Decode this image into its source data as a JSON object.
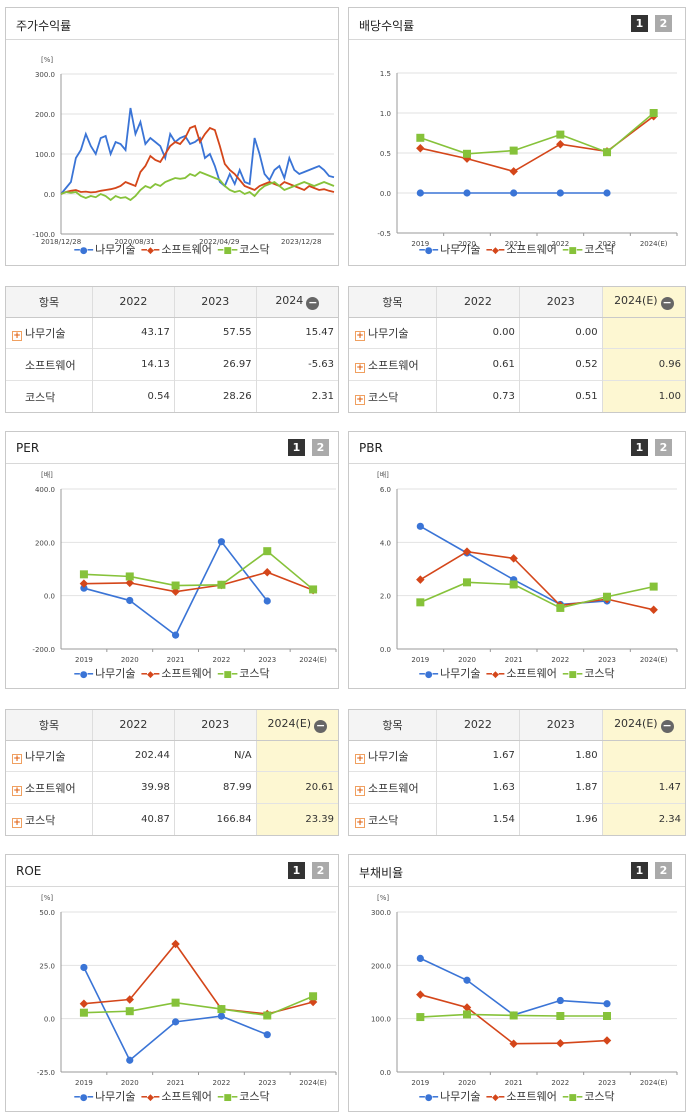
{
  "colors": {
    "s1": "#3a74d6",
    "s2": "#d4461a",
    "s3": "#86c23a"
  },
  "legend": [
    "나무기술",
    "소프트웨어",
    "코스닥"
  ],
  "panels": {
    "stock": {
      "title": "주가수익률",
      "unit": "[%]"
    },
    "div": {
      "title": "배당수익률",
      "btn1": "1",
      "btn2": "2"
    },
    "per": {
      "title": "PER",
      "unit": "[배]",
      "btn1": "1",
      "btn2": "2"
    },
    "pbr": {
      "title": "PBR",
      "unit": "[배]",
      "btn1": "1",
      "btn2": "2"
    },
    "roe": {
      "title": "ROE",
      "unit": "[%]",
      "btn1": "1",
      "btn2": "2"
    },
    "debt": {
      "title": "부채비율",
      "unit": "[%]",
      "btn1": "1",
      "btn2": "2"
    }
  },
  "tables": {
    "stock": {
      "head": [
        "항목",
        "2022",
        "2023",
        "2024"
      ],
      "rows": [
        {
          "label": "나무기술",
          "plus": true,
          "v": [
            "43.17",
            "57.55",
            "15.47"
          ]
        },
        {
          "label": "소프트웨어",
          "plus": false,
          "v": [
            "14.13",
            "26.97",
            "-5.63"
          ]
        },
        {
          "label": "코스닥",
          "plus": false,
          "v": [
            "0.54",
            "28.26",
            "2.31"
          ]
        }
      ]
    },
    "div": {
      "head": [
        "항목",
        "2022",
        "2023",
        "2024(E)"
      ],
      "rows": [
        {
          "label": "나무기술",
          "plus": true,
          "v": [
            "0.00",
            "0.00",
            ""
          ]
        },
        {
          "label": "소프트웨어",
          "plus": true,
          "v": [
            "0.61",
            "0.52",
            "0.96"
          ]
        },
        {
          "label": "코스닥",
          "plus": true,
          "v": [
            "0.73",
            "0.51",
            "1.00"
          ]
        }
      ]
    },
    "per": {
      "head": [
        "항목",
        "2022",
        "2023",
        "2024(E)"
      ],
      "rows": [
        {
          "label": "나무기술",
          "plus": true,
          "v": [
            "202.44",
            "N/A",
            ""
          ]
        },
        {
          "label": "소프트웨어",
          "plus": true,
          "v": [
            "39.98",
            "87.99",
            "20.61"
          ]
        },
        {
          "label": "코스닥",
          "plus": true,
          "v": [
            "40.87",
            "166.84",
            "23.39"
          ]
        }
      ]
    },
    "pbr": {
      "head": [
        "항목",
        "2022",
        "2023",
        "2024(E)"
      ],
      "rows": [
        {
          "label": "나무기술",
          "plus": true,
          "v": [
            "1.67",
            "1.80",
            ""
          ]
        },
        {
          "label": "소프트웨어",
          "plus": true,
          "v": [
            "1.63",
            "1.87",
            "1.47"
          ]
        },
        {
          "label": "코스닥",
          "plus": true,
          "v": [
            "1.54",
            "1.96",
            "2.34"
          ]
        }
      ]
    }
  },
  "chart_data": [
    {
      "id": "stock",
      "type": "line",
      "title": "주가수익률",
      "ylabel": "[%]",
      "ylim": [
        -100,
        300
      ],
      "yticks": [
        "300.0",
        "200.0",
        "100.0",
        "0.0",
        "-100.0"
      ],
      "xticks": [
        "2018/12/28",
        "2020/08/31",
        "2022/04/29",
        "2023/12/28"
      ],
      "series": [
        {
          "name": "나무기술",
          "values": [
            0,
            15,
            30,
            90,
            110,
            150,
            120,
            100,
            140,
            145,
            100,
            130,
            125,
            110,
            215,
            150,
            180,
            125,
            140,
            130,
            120,
            90,
            150,
            130,
            140,
            145,
            125,
            130,
            140,
            90,
            100,
            70,
            30,
            20,
            50,
            25,
            60,
            30,
            25,
            140,
            100,
            50,
            35,
            60,
            70,
            40,
            90,
            60,
            50,
            55,
            60,
            65,
            70,
            60,
            45,
            42
          ]
        },
        {
          "name": "소프트웨어",
          "values": [
            0,
            5,
            8,
            10,
            5,
            6,
            4,
            5,
            8,
            10,
            12,
            15,
            20,
            30,
            25,
            20,
            55,
            70,
            95,
            85,
            80,
            100,
            120,
            130,
            125,
            140,
            165,
            170,
            130,
            150,
            165,
            160,
            120,
            75,
            60,
            50,
            35,
            20,
            15,
            10,
            20,
            25,
            30,
            25,
            20,
            30,
            25,
            20,
            15,
            10,
            20,
            15,
            10,
            12,
            8,
            5
          ]
        },
        {
          "name": "코스닥",
          "values": [
            0,
            5,
            3,
            5,
            -5,
            -10,
            -5,
            -8,
            0,
            -5,
            -15,
            -5,
            -10,
            -8,
            -15,
            -5,
            10,
            20,
            15,
            25,
            20,
            30,
            35,
            40,
            38,
            40,
            50,
            45,
            55,
            50,
            45,
            40,
            35,
            20,
            10,
            5,
            8,
            0,
            5,
            -5,
            10,
            20,
            25,
            30,
            20,
            10,
            15,
            20,
            25,
            30,
            25,
            20,
            25,
            30,
            25,
            20
          ]
        }
      ]
    },
    {
      "id": "div",
      "type": "line",
      "title": "배당수익률",
      "ylim": [
        -0.5,
        1.5
      ],
      "yticks": [
        "1.5",
        "1.0",
        "0.5",
        "0.0",
        "-0.5"
      ],
      "categories": [
        "2019",
        "2020",
        "2021",
        "2022",
        "2023",
        "2024(E)"
      ],
      "series": [
        {
          "name": "나무기술",
          "values": [
            0,
            0,
            0,
            0,
            0,
            null
          ]
        },
        {
          "name": "소프트웨어",
          "values": [
            0.56,
            0.43,
            0.27,
            0.61,
            0.52,
            0.96
          ]
        },
        {
          "name": "코스닥",
          "values": [
            0.69,
            0.49,
            0.53,
            0.73,
            0.51,
            1.0
          ]
        }
      ]
    },
    {
      "id": "per",
      "type": "line",
      "title": "PER",
      "ylabel": "[배]",
      "ylim": [
        -200,
        400
      ],
      "yticks": [
        "400.0",
        "200.0",
        "0.0",
        "-200.0"
      ],
      "categories": [
        "2019",
        "2020",
        "2021",
        "2022",
        "2023",
        "2024(E)"
      ],
      "series": [
        {
          "name": "나무기술",
          "values": [
            28,
            -18,
            -148,
            202.44,
            -20,
            null
          ]
        },
        {
          "name": "소프트웨어",
          "values": [
            45,
            48,
            15,
            39.98,
            87.99,
            20.61
          ]
        },
        {
          "name": "코스닥",
          "values": [
            80,
            72,
            38,
            40.87,
            166.84,
            23.39
          ]
        }
      ]
    },
    {
      "id": "pbr",
      "type": "line",
      "title": "PBR",
      "ylabel": "[배]",
      "ylim": [
        0,
        6
      ],
      "yticks": [
        "6.0",
        "4.0",
        "2.0",
        "0.0"
      ],
      "categories": [
        "2019",
        "2020",
        "2021",
        "2022",
        "2023",
        "2024(E)"
      ],
      "series": [
        {
          "name": "나무기술",
          "values": [
            4.6,
            3.6,
            2.6,
            1.67,
            1.8,
            null
          ]
        },
        {
          "name": "소프트웨어",
          "values": [
            2.6,
            3.65,
            3.4,
            1.63,
            1.87,
            1.47
          ]
        },
        {
          "name": "코스닥",
          "values": [
            1.75,
            2.5,
            2.42,
            1.54,
            1.96,
            2.34
          ]
        }
      ]
    },
    {
      "id": "roe",
      "type": "line",
      "title": "ROE",
      "ylabel": "[%]",
      "ylim": [
        -25,
        50
      ],
      "yticks": [
        "50.0",
        "25.0",
        "0.0",
        "-25.0"
      ],
      "categories": [
        "2019",
        "2020",
        "2021",
        "2022",
        "2023",
        "2024(E)"
      ],
      "series": [
        {
          "name": "나무기술",
          "values": [
            24,
            -19.5,
            -1.5,
            1.2,
            -7.5,
            null
          ]
        },
        {
          "name": "소프트웨어",
          "values": [
            7,
            9,
            35,
            4.5,
            2.2,
            7.8
          ]
        },
        {
          "name": "코스닥",
          "values": [
            2.8,
            3.5,
            7.5,
            4.5,
            1.5,
            10.5
          ]
        }
      ]
    },
    {
      "id": "debt",
      "type": "line",
      "title": "부채비율",
      "ylabel": "[%]",
      "ylim": [
        0,
        300
      ],
      "yticks": [
        "300.0",
        "200.0",
        "100.0",
        "0.0"
      ],
      "categories": [
        "2019",
        "2020",
        "2021",
        "2022",
        "2023",
        "2024(E)"
      ],
      "series": [
        {
          "name": "나무기술",
          "values": [
            213,
            172,
            107,
            134,
            128,
            null
          ]
        },
        {
          "name": "소프트웨어",
          "values": [
            145,
            121,
            53,
            54,
            59,
            null
          ]
        },
        {
          "name": "코스닥",
          "values": [
            103,
            108,
            106,
            105,
            105,
            null
          ]
        }
      ]
    }
  ]
}
